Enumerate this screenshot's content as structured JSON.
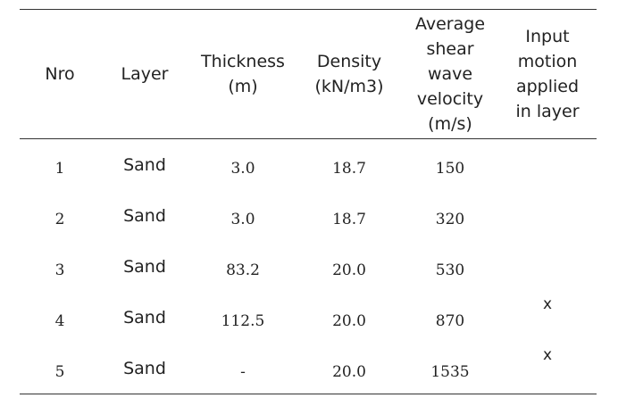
{
  "table": {
    "headers": [
      [
        "Nro"
      ],
      [
        "Layer"
      ],
      [
        "Thickness",
        "(m)"
      ],
      [
        "Density",
        "(kN/m3)"
      ],
      [
        "Average",
        "shear",
        "wave",
        "velocity",
        "(m/s)"
      ],
      [
        "Input",
        "motion",
        "applied",
        "in layer"
      ]
    ],
    "rows": [
      {
        "nro": "1",
        "layer": "Sand",
        "thickness": "3.0",
        "density": "18.7",
        "velocity": "150",
        "input": ""
      },
      {
        "nro": "2",
        "layer": "Sand",
        "thickness": "3.0",
        "density": "18.7",
        "velocity": "320",
        "input": ""
      },
      {
        "nro": "3",
        "layer": "Sand",
        "thickness": "83.2",
        "density": "20.0",
        "velocity": "530",
        "input": ""
      },
      {
        "nro": "4",
        "layer": "Sand",
        "thickness": "112.5",
        "density": "20.0",
        "velocity": "870",
        "input": "x"
      },
      {
        "nro": "5",
        "layer": "Sand",
        "thickness": "-",
        "density": "20.0",
        "velocity": "1535",
        "input": "x"
      }
    ]
  }
}
